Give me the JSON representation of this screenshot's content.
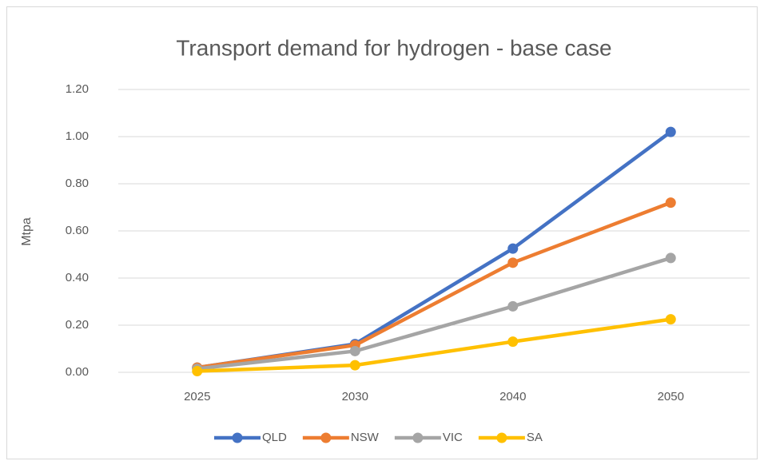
{
  "chart_data": {
    "type": "line",
    "title": "Transport demand for hydrogen - base case",
    "y_label": "Mtpa",
    "categories": [
      "2025",
      "2030",
      "2040",
      "2050"
    ],
    "series": [
      {
        "name": "QLD",
        "color": "#4472c4",
        "values": [
          0.02,
          0.12,
          0.525,
          1.02
        ]
      },
      {
        "name": "NSW",
        "color": "#ed7d31",
        "values": [
          0.02,
          0.115,
          0.465,
          0.72
        ]
      },
      {
        "name": "VIC",
        "color": "#a5a5a5",
        "values": [
          0.015,
          0.09,
          0.28,
          0.485
        ]
      },
      {
        "name": "SA",
        "color": "#ffc000",
        "values": [
          0.005,
          0.03,
          0.13,
          0.225
        ]
      }
    ],
    "ylim": [
      0,
      1.2
    ],
    "yticks": [
      {
        "value": 0,
        "label": "0.00"
      },
      {
        "value": 0.2,
        "label": "0.20"
      },
      {
        "value": 0.4,
        "label": "0.40"
      },
      {
        "value": 0.6,
        "label": "0.60"
      },
      {
        "value": 0.8,
        "label": "0.80"
      },
      {
        "value": 1.0,
        "label": "1.00"
      },
      {
        "value": 1.2,
        "label": "1.20"
      }
    ],
    "grid": true,
    "legend": "bottom"
  }
}
